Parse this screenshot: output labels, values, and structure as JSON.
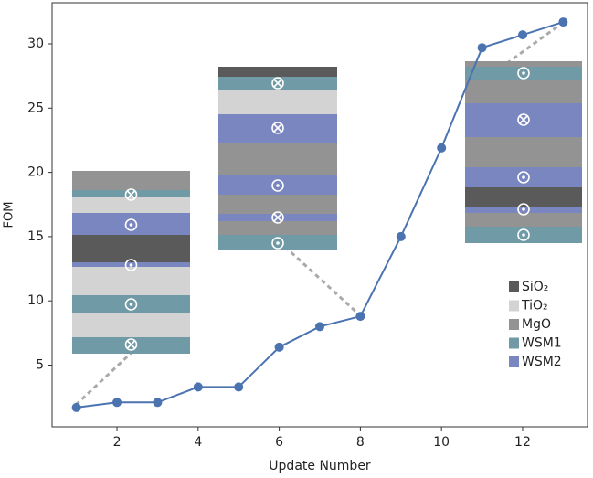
{
  "chart_data": {
    "type": "line",
    "x_label": "Update Number",
    "y_label": "FOM",
    "x": [
      1,
      2,
      3,
      4,
      5,
      6,
      7,
      8,
      9,
      10,
      11,
      12,
      13
    ],
    "series": [
      {
        "name": "FOM",
        "color": "#4a73b0",
        "values": [
          1.7,
          2.1,
          2.1,
          3.3,
          3.3,
          6.4,
          8.0,
          8.8,
          15.0,
          21.9,
          29.7,
          30.7,
          31.7
        ]
      }
    ],
    "xlim": [
      0.4,
      13.6
    ],
    "xticks": [
      2,
      4,
      6,
      8,
      10,
      12
    ],
    "ylim": [
      0.2,
      33.2
    ],
    "yticks": [
      5,
      10,
      15,
      20,
      25,
      30
    ],
    "layer_legend": [
      {
        "name": "SiO₂",
        "color": "#5a5a5a"
      },
      {
        "name": "TiO₂",
        "color": "#d3d3d3"
      },
      {
        "name": "MgO",
        "color": "#939393"
      },
      {
        "name": "WSM1",
        "color": "#6f9aa6"
      },
      {
        "name": "WSM2",
        "color": "#7a86c0"
      }
    ]
  }
}
